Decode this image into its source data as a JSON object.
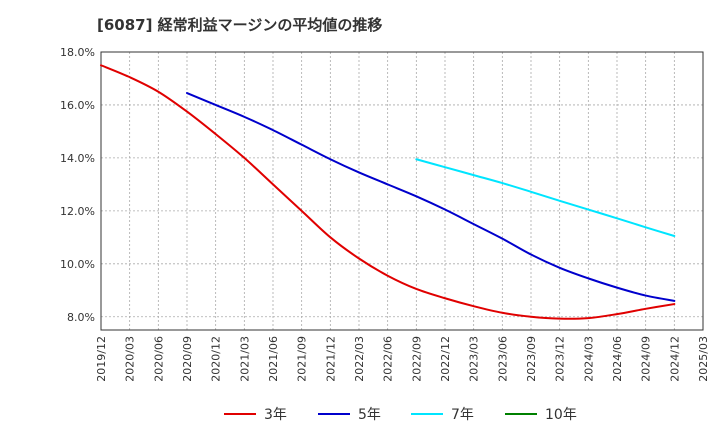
{
  "title": "[6087]  経常利益マージンの平均値の推移",
  "chart_data": {
    "type": "line",
    "title": "[6087]  経常利益マージンの平均値の推移",
    "xlabel": "",
    "ylabel": "",
    "ylim": [
      7.5,
      18.0
    ],
    "y_ticks": [
      8,
      10,
      12,
      14,
      16,
      18
    ],
    "y_tick_labels": [
      "8.0%",
      "10.0%",
      "12.0%",
      "14.0%",
      "16.0%",
      "18.0%"
    ],
    "x_tick_labels": [
      "2019/12",
      "2020/03",
      "2020/06",
      "2020/09",
      "2020/12",
      "2021/03",
      "2021/06",
      "2021/09",
      "2021/12",
      "2022/03",
      "2022/06",
      "2022/09",
      "2022/12",
      "2023/03",
      "2023/06",
      "2023/09",
      "2023/12",
      "2024/03",
      "2024/06",
      "2024/09",
      "2024/12",
      "2025/03"
    ],
    "grid": true,
    "legend_position": "bottom",
    "series": [
      {
        "name": "3年",
        "color": "#e00000",
        "x": [
          "2019/12",
          "2020/03",
          "2020/06",
          "2020/09",
          "2020/12",
          "2021/03",
          "2021/06",
          "2021/09",
          "2021/12",
          "2022/03",
          "2022/06",
          "2022/09",
          "2022/12",
          "2023/03",
          "2023/06",
          "2023/09",
          "2023/12",
          "2024/03",
          "2024/06",
          "2024/09",
          "2024/12"
        ],
        "values": [
          17.5,
          17.05,
          16.5,
          15.75,
          14.9,
          14.0,
          13.0,
          12.0,
          11.0,
          10.2,
          9.55,
          9.05,
          8.7,
          8.4,
          8.15,
          8.0,
          7.93,
          7.95,
          8.1,
          8.3,
          8.48
        ]
      },
      {
        "name": "5年",
        "color": "#0000cc",
        "x": [
          "2020/09",
          "2020/12",
          "2021/03",
          "2021/06",
          "2021/09",
          "2021/12",
          "2022/03",
          "2022/06",
          "2022/09",
          "2022/12",
          "2023/03",
          "2023/06",
          "2023/09",
          "2023/12",
          "2024/03",
          "2024/06",
          "2024/09",
          "2024/12"
        ],
        "values": [
          16.45,
          16.0,
          15.55,
          15.05,
          14.5,
          13.95,
          13.45,
          13.0,
          12.55,
          12.05,
          11.5,
          10.95,
          10.35,
          9.85,
          9.45,
          9.1,
          8.8,
          8.6
        ]
      },
      {
        "name": "7年",
        "color": "#00e5ff",
        "x": [
          "2022/09",
          "2022/12",
          "2023/03",
          "2023/06",
          "2023/09",
          "2023/12",
          "2024/03",
          "2024/06",
          "2024/09",
          "2024/12"
        ],
        "values": [
          13.95,
          13.65,
          13.35,
          13.05,
          12.72,
          12.38,
          12.05,
          11.72,
          11.38,
          11.05
        ]
      },
      {
        "name": "10年",
        "color": "#008000",
        "x": [],
        "values": []
      }
    ]
  }
}
